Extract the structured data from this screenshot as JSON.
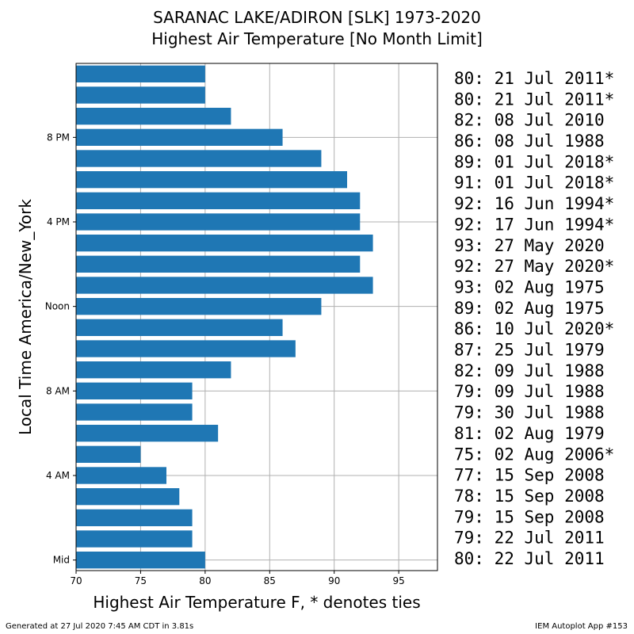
{
  "chart_data": {
    "type": "bar",
    "orientation": "horizontal",
    "title": "SARANAC LAKE/ADIRON [SLK] 1973-2020",
    "subtitle": "Highest Air Temperature [No Month Limit]",
    "xlabel": "Highest Air Temperature F, * denotes ties",
    "ylabel": "Local Time America/New_York",
    "xlim": [
      70,
      98
    ],
    "x_ticks": [
      70,
      75,
      80,
      85,
      90,
      95
    ],
    "y_ticks": [
      {
        "hour": 0,
        "label": "Mid"
      },
      {
        "hour": 4,
        "label": "4 AM"
      },
      {
        "hour": 8,
        "label": "8 AM"
      },
      {
        "hour": 12,
        "label": "Noon"
      },
      {
        "hour": 16,
        "label": "4 PM"
      },
      {
        "hour": 20,
        "label": "8 PM"
      }
    ],
    "grid": true,
    "bar_color": "#1f77b4",
    "hours": [
      0,
      1,
      2,
      3,
      4,
      5,
      6,
      7,
      8,
      9,
      10,
      11,
      12,
      13,
      14,
      15,
      16,
      17,
      18,
      19,
      20,
      21,
      22,
      23
    ],
    "values": [
      80,
      79,
      79,
      78,
      77,
      75,
      81,
      79,
      79,
      82,
      87,
      86,
      89,
      93,
      92,
      93,
      92,
      92,
      91,
      89,
      86,
      82,
      80,
      80
    ],
    "annotations": [
      "80: 21 Jul 2011*",
      "80: 21 Jul 2011*",
      "82: 08 Jul 2010",
      "86: 08 Jul 1988",
      "89: 01 Jul 2018*",
      "91: 01 Jul 2018*",
      "92: 16 Jun 1994*",
      "92: 17 Jun 1994*",
      "93: 27 May 2020",
      "92: 27 May 2020*",
      "93: 02 Aug 1975",
      "89: 02 Aug 1975",
      "86: 10 Jul 2020*",
      "87: 25 Jul 1979",
      "82: 09 Jul 1988",
      "79: 09 Jul 1988",
      "79: 30 Jul 1988",
      "81: 02 Aug 1979",
      "75: 02 Aug 2006*",
      "77: 15 Sep 2008",
      "78: 15 Sep 2008",
      "79: 15 Sep 2008",
      "79: 22 Jul 2011",
      "80: 22 Jul 2011"
    ]
  },
  "footer": {
    "generated": "Generated at 27 Jul 2020 7:45 AM CDT in 3.81s",
    "app": "IEM Autoplot App #153"
  }
}
